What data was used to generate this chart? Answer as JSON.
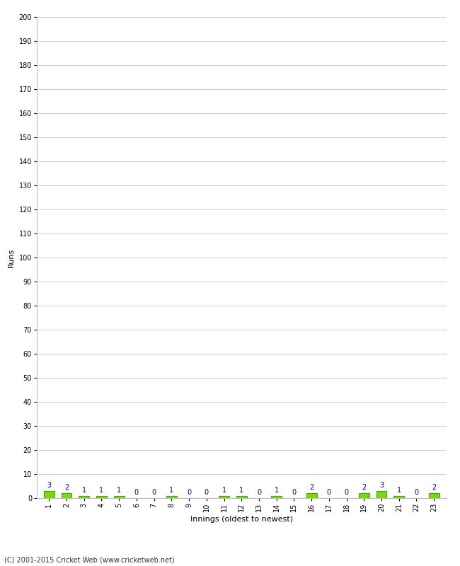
{
  "title": "",
  "xlabel": "Innings (oldest to newest)",
  "ylabel": "Runs",
  "categories": [
    1,
    2,
    3,
    4,
    5,
    6,
    7,
    8,
    9,
    10,
    11,
    12,
    13,
    14,
    15,
    16,
    17,
    18,
    19,
    20,
    21,
    22,
    23
  ],
  "values": [
    3,
    2,
    1,
    1,
    1,
    0,
    0,
    1,
    0,
    0,
    1,
    1,
    0,
    1,
    0,
    2,
    0,
    0,
    2,
    3,
    1,
    0,
    2
  ],
  "bar_color": "#77DD00",
  "bar_edge_color": "#44AA00",
  "label_color": "#000099",
  "ylim": [
    0,
    200
  ],
  "yticks": [
    0,
    10,
    20,
    30,
    40,
    50,
    60,
    70,
    80,
    90,
    100,
    110,
    120,
    130,
    140,
    150,
    160,
    170,
    180,
    190,
    200
  ],
  "background_color": "#ffffff",
  "grid_color": "#cccccc",
  "footer": "(C) 2001-2015 Cricket Web (www.cricketweb.net)",
  "axis_label_fontsize": 8,
  "tick_fontsize": 7,
  "value_label_fontsize": 7,
  "footer_fontsize": 7
}
